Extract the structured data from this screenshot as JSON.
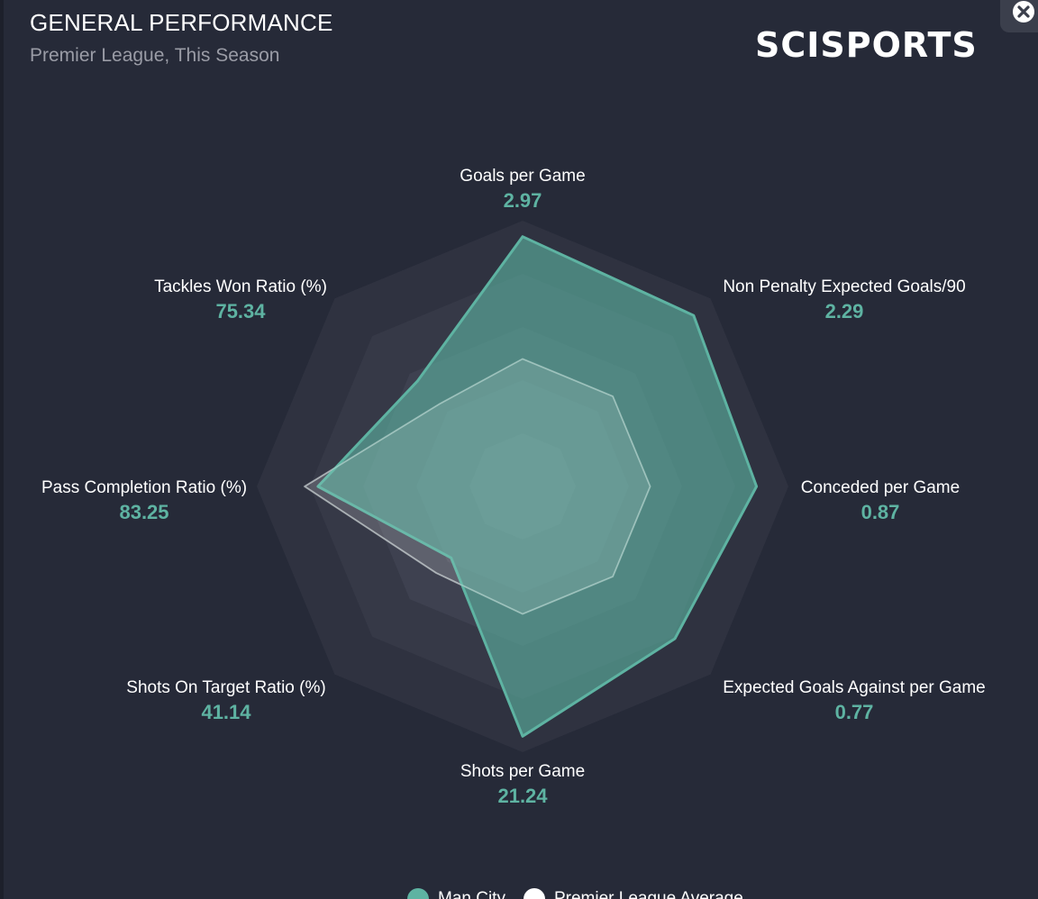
{
  "header": {
    "title": "GENERAL PERFORMANCE",
    "subtitle": "Premier League, This Season",
    "logo_text": "SCISPORTS"
  },
  "close_icon": "close-circle-icon",
  "colors": {
    "background": "#262a38",
    "man_city": "#5eb3a2",
    "league_average": "#ffffff",
    "value_text": "#5eb3a2"
  },
  "chart_data": {
    "type": "radar",
    "title": "GENERAL PERFORMANCE",
    "subtitle": "Premier League, This Season",
    "axes": [
      {
        "label": "Goals per Game",
        "value": "2.97"
      },
      {
        "label": "Non Penalty Expected Goals/90",
        "value": "2.29"
      },
      {
        "label": "Conceded per Game",
        "value": "0.87"
      },
      {
        "label": "Expected Goals Against per Game",
        "value": "0.77"
      },
      {
        "label": "Shots per Game",
        "value": "21.24"
      },
      {
        "label": "Shots On Target Ratio (%)",
        "value": "41.14"
      },
      {
        "label": "Pass Completion Ratio (%)",
        "value": "83.25"
      },
      {
        "label": "Tackles Won Ratio (%)",
        "value": "75.34"
      }
    ],
    "grid_rings": 5,
    "series": [
      {
        "name": "Man City",
        "color": "#5eb3a2",
        "relative_values": [
          0.94,
          0.91,
          0.88,
          0.81,
          0.94,
          0.38,
          0.77,
          0.56
        ]
      },
      {
        "name": "Premier League Average",
        "color": "#ffffff",
        "relative_values": [
          0.48,
          0.48,
          0.48,
          0.48,
          0.48,
          0.46,
          0.82,
          0.44
        ]
      }
    ],
    "legend": {
      "position": "bottom"
    }
  }
}
